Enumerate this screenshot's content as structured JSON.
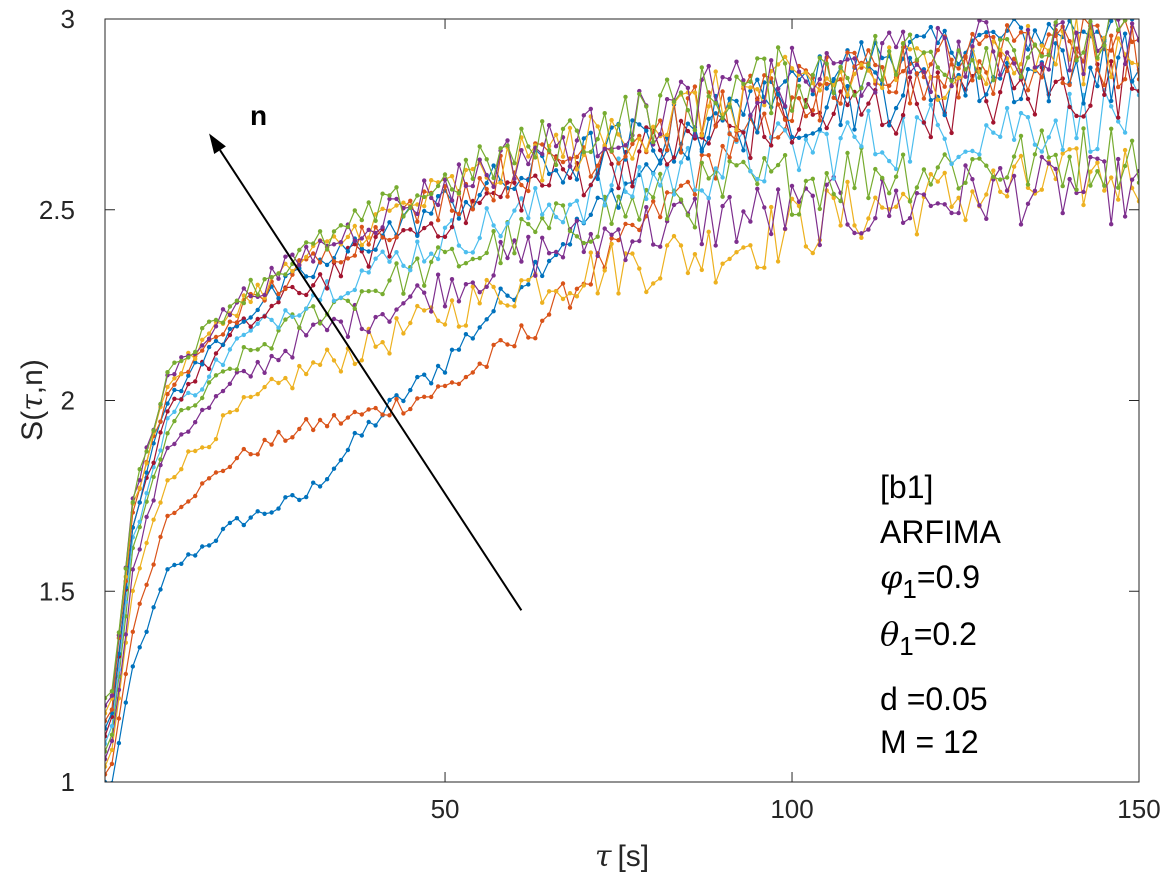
{
  "chart_data": {
    "type": "line",
    "xlabel_symbol": "τ",
    "xlabel_unit": "[s]",
    "ylabel_prefix": "S(",
    "ylabel_symbol": "τ",
    "ylabel_suffix": ",n)",
    "xlim": [
      1,
      150
    ],
    "ylim": [
      1,
      3
    ],
    "x_ticks": [
      50,
      100,
      150
    ],
    "x_tick_labels": [
      "50",
      "100",
      "150"
    ],
    "y_ticks": [
      1,
      1.5,
      2,
      2.5,
      3
    ],
    "y_tick_labels": [
      "1",
      "1.5",
      "2",
      "2.5",
      "3"
    ],
    "grid": false,
    "markers": true,
    "arrow": {
      "label": "n",
      "from": [
        61,
        1.45
      ],
      "to": [
        16,
        2.7
      ]
    },
    "annotation": {
      "line1": "[b1]",
      "line2": "ARFIMA",
      "phi_symbol": "φ",
      "phi_sub": "1",
      "phi_value": "=0.9",
      "theta_symbol": "θ",
      "theta_sub": "1",
      "theta_value": "=0.2",
      "line_d": "d =0.05",
      "line_m": "M = 12"
    },
    "series": [
      {
        "color": "#0072BD",
        "key": [
          [
            2,
            1.0
          ],
          [
            5,
            1.3
          ],
          [
            10,
            1.55
          ],
          [
            20,
            1.68
          ],
          [
            30,
            1.75
          ],
          [
            40,
            1.95
          ],
          [
            50,
            2.1
          ],
          [
            60,
            2.3
          ],
          [
            75,
            2.55
          ],
          [
            90,
            2.75
          ],
          [
            110,
            2.9
          ],
          [
            130,
            2.95
          ],
          [
            150,
            3.0
          ]
        ]
      },
      {
        "color": "#D95319",
        "key": [
          [
            2,
            1.05
          ],
          [
            5,
            1.4
          ],
          [
            10,
            1.7
          ],
          [
            20,
            1.85
          ],
          [
            30,
            1.93
          ],
          [
            40,
            1.97
          ],
          [
            50,
            2.03
          ],
          [
            60,
            2.15
          ],
          [
            75,
            2.4
          ],
          [
            90,
            2.65
          ],
          [
            110,
            2.85
          ],
          [
            130,
            2.95
          ],
          [
            150,
            2.95
          ]
        ]
      },
      {
        "color": "#EDB120",
        "key": [
          [
            2,
            1.08
          ],
          [
            5,
            1.5
          ],
          [
            10,
            1.8
          ],
          [
            20,
            1.97
          ],
          [
            30,
            2.08
          ],
          [
            40,
            2.15
          ],
          [
            50,
            2.23
          ],
          [
            60,
            2.3
          ],
          [
            75,
            2.35
          ],
          [
            90,
            2.4
          ],
          [
            110,
            2.5
          ],
          [
            130,
            2.55
          ],
          [
            150,
            2.6
          ]
        ]
      },
      {
        "color": "#7E2F8E",
        "key": [
          [
            2,
            1.1
          ],
          [
            5,
            1.55
          ],
          [
            10,
            1.88
          ],
          [
            20,
            2.05
          ],
          [
            30,
            2.17
          ],
          [
            40,
            2.23
          ],
          [
            50,
            2.3
          ],
          [
            60,
            2.37
          ],
          [
            75,
            2.44
          ],
          [
            90,
            2.48
          ],
          [
            110,
            2.5
          ],
          [
            130,
            2.55
          ],
          [
            150,
            2.55
          ]
        ]
      },
      {
        "color": "#77AC30",
        "key": [
          [
            2,
            1.12
          ],
          [
            5,
            1.6
          ],
          [
            10,
            1.92
          ],
          [
            20,
            2.1
          ],
          [
            30,
            2.22
          ],
          [
            40,
            2.3
          ],
          [
            50,
            2.36
          ],
          [
            60,
            2.42
          ],
          [
            75,
            2.5
          ],
          [
            90,
            2.55
          ],
          [
            110,
            2.6
          ],
          [
            130,
            2.62
          ],
          [
            150,
            2.65
          ]
        ]
      },
      {
        "color": "#4DBEEE",
        "key": [
          [
            2,
            1.14
          ],
          [
            5,
            1.63
          ],
          [
            10,
            1.95
          ],
          [
            20,
            2.15
          ],
          [
            30,
            2.27
          ],
          [
            40,
            2.35
          ],
          [
            50,
            2.42
          ],
          [
            60,
            2.48
          ],
          [
            75,
            2.56
          ],
          [
            90,
            2.62
          ],
          [
            110,
            2.68
          ],
          [
            130,
            2.72
          ],
          [
            150,
            2.75
          ]
        ]
      },
      {
        "color": "#A2142F",
        "key": [
          [
            2,
            1.16
          ],
          [
            5,
            1.66
          ],
          [
            10,
            1.98
          ],
          [
            20,
            2.18
          ],
          [
            30,
            2.3
          ],
          [
            40,
            2.4
          ],
          [
            50,
            2.48
          ],
          [
            60,
            2.55
          ],
          [
            75,
            2.63
          ],
          [
            90,
            2.7
          ],
          [
            110,
            2.76
          ],
          [
            130,
            2.8
          ],
          [
            150,
            2.83
          ]
        ]
      },
      {
        "color": "#0072BD",
        "key": [
          [
            2,
            1.18
          ],
          [
            5,
            1.68
          ],
          [
            10,
            2.0
          ],
          [
            20,
            2.21
          ],
          [
            30,
            2.33
          ],
          [
            40,
            2.43
          ],
          [
            50,
            2.51
          ],
          [
            60,
            2.58
          ],
          [
            75,
            2.66
          ],
          [
            90,
            2.73
          ],
          [
            110,
            2.8
          ],
          [
            130,
            2.85
          ],
          [
            150,
            2.88
          ]
        ]
      },
      {
        "color": "#D95319",
        "key": [
          [
            2,
            1.2
          ],
          [
            5,
            1.7
          ],
          [
            10,
            2.02
          ],
          [
            20,
            2.23
          ],
          [
            30,
            2.35
          ],
          [
            40,
            2.45
          ],
          [
            50,
            2.53
          ],
          [
            60,
            2.6
          ],
          [
            75,
            2.68
          ],
          [
            90,
            2.76
          ],
          [
            110,
            2.83
          ],
          [
            130,
            2.88
          ],
          [
            150,
            2.9
          ]
        ]
      },
      {
        "color": "#EDB120",
        "key": [
          [
            2,
            1.21
          ],
          [
            5,
            1.72
          ],
          [
            10,
            2.04
          ],
          [
            20,
            2.25
          ],
          [
            30,
            2.37
          ],
          [
            40,
            2.47
          ],
          [
            50,
            2.55
          ],
          [
            60,
            2.62
          ],
          [
            75,
            2.7
          ],
          [
            90,
            2.78
          ],
          [
            110,
            2.85
          ],
          [
            130,
            2.9
          ],
          [
            150,
            2.93
          ]
        ]
      },
      {
        "color": "#7E2F8E",
        "key": [
          [
            2,
            1.22
          ],
          [
            5,
            1.73
          ],
          [
            10,
            2.06
          ],
          [
            20,
            2.26
          ],
          [
            30,
            2.38
          ],
          [
            40,
            2.48
          ],
          [
            50,
            2.56
          ],
          [
            60,
            2.64
          ],
          [
            75,
            2.72
          ],
          [
            90,
            2.8
          ],
          [
            110,
            2.87
          ],
          [
            130,
            2.92
          ],
          [
            150,
            2.95
          ]
        ]
      },
      {
        "color": "#77AC30",
        "key": [
          [
            2,
            1.23
          ],
          [
            5,
            1.74
          ],
          [
            10,
            2.07
          ],
          [
            20,
            2.27
          ],
          [
            30,
            2.39
          ],
          [
            40,
            2.49
          ],
          [
            50,
            2.57
          ],
          [
            60,
            2.65
          ],
          [
            75,
            2.73
          ],
          [
            90,
            2.81
          ],
          [
            110,
            2.88
          ],
          [
            130,
            2.93
          ],
          [
            150,
            2.96
          ]
        ]
      }
    ]
  }
}
